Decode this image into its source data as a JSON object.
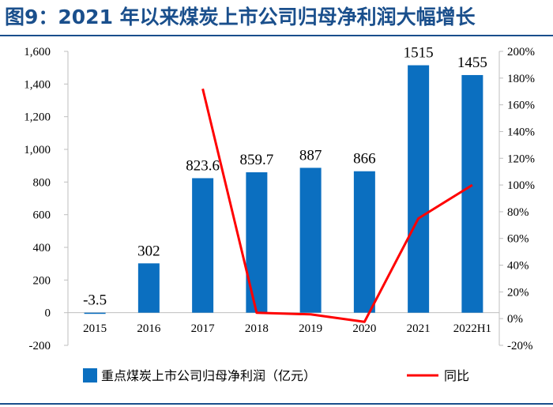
{
  "title": "图9：2021 年以来煤炭上市公司归母净利润大幅增长",
  "chart_data": {
    "type": "bar+line",
    "categories": [
      "2015",
      "2016",
      "2017",
      "2018",
      "2019",
      "2020",
      "2021",
      "2022H1"
    ],
    "series": [
      {
        "name": "重点煤炭上市公司归母净利润（亿元）",
        "type": "bar",
        "axis": "left",
        "color": "#0b6fc0",
        "values": [
          -3.5,
          302,
          823.6,
          859.7,
          887,
          866,
          1515,
          1455
        ],
        "labels": [
          "-3.5",
          "302",
          "823.6",
          "859.7",
          "887",
          "866",
          "1515",
          "1455"
        ]
      },
      {
        "name": "同比",
        "type": "line",
        "axis": "right",
        "color": "#ff0000",
        "values": [
          null,
          null,
          172,
          4.4,
          3.2,
          -2.4,
          75,
          100
        ]
      }
    ],
    "y_left": {
      "range": [
        -200,
        1600
      ],
      "ticks": [
        -200,
        0,
        200,
        400,
        600,
        800,
        1000,
        1200,
        1400,
        1600
      ],
      "tick_labels": [
        "-200",
        "0",
        "200",
        "400",
        "600",
        "800",
        "1,000",
        "1,200",
        "1,400",
        "1,600"
      ]
    },
    "y_right": {
      "range": [
        -20,
        200
      ],
      "ticks": [
        -20,
        0,
        20,
        40,
        60,
        80,
        100,
        120,
        140,
        160,
        180,
        200
      ],
      "tick_labels": [
        "-20%",
        "0%",
        "20%",
        "40%",
        "60%",
        "80%",
        "100%",
        "120%",
        "140%",
        "160%",
        "180%",
        "200%"
      ]
    },
    "legend": "bottom",
    "grid": false
  }
}
